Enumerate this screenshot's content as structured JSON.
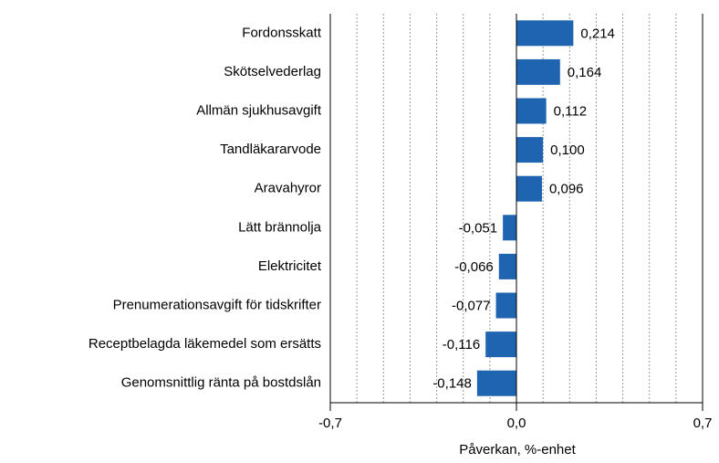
{
  "chart_data": {
    "type": "barh",
    "categories": [
      "Fordonsskatt",
      "Skötselvederlag",
      "Allmän sjukhusavgift",
      "Tandläkararvode",
      "Aravahyror",
      "Lätt brännolja",
      "Elektricitet",
      "Prenumerationsavgift för tidskrifter",
      "Receptbelagda läkemedel som ersätts",
      "Genomsnittlig ränta på bostdslån"
    ],
    "values": [
      0.214,
      0.164,
      0.112,
      0.1,
      0.096,
      -0.051,
      -0.066,
      -0.077,
      -0.116,
      -0.148
    ],
    "value_labels": [
      "0,214",
      "0,164",
      "0,112",
      "0,100",
      "0,096",
      "-0,051",
      "-0,066",
      "-0,077",
      "-0,116",
      "-0,148"
    ],
    "color": "#1f64b0",
    "xlim": [
      -0.7,
      0.7
    ],
    "xticks": [
      {
        "value": -0.7,
        "label": "-0,7"
      },
      {
        "value": 0,
        "label": "0,0"
      },
      {
        "value": 0.7,
        "label": "0,7"
      }
    ],
    "xgrid": [
      -0.6,
      -0.5,
      -0.4,
      -0.3,
      -0.2,
      -0.1,
      0.1,
      0.2,
      0.3,
      0.4,
      0.5,
      0.6
    ],
    "grid": true,
    "xlabel": "Påverkan, %-enhet"
  }
}
